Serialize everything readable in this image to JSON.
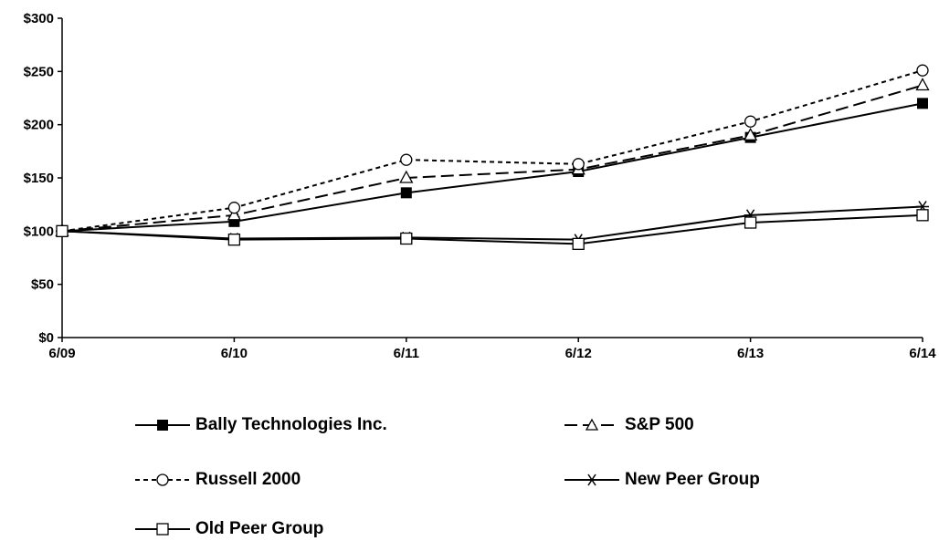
{
  "chart_data": {
    "type": "line",
    "title": "",
    "xlabel": "",
    "ylabel": "",
    "categories": [
      "6/09",
      "6/10",
      "6/11",
      "6/12",
      "6/13",
      "6/14"
    ],
    "y_ticks": [
      "$0",
      "$50",
      "$100",
      "$150",
      "$200",
      "$250",
      "$300"
    ],
    "ylim": [
      0,
      300
    ],
    "grid": false,
    "legend_position": "bottom",
    "series": [
      {
        "name": "Bally Technologies Inc.",
        "marker": "filled-square",
        "dash": "solid",
        "values": [
          100,
          109,
          136,
          156,
          188,
          220
        ]
      },
      {
        "name": "S&P 500",
        "marker": "open-triangle",
        "dash": "long-dash",
        "values": [
          100,
          115,
          150,
          158,
          190,
          237
        ]
      },
      {
        "name": "Russell 2000",
        "marker": "open-circle",
        "dash": "short-dash",
        "values": [
          100,
          122,
          167,
          163,
          203,
          251
        ]
      },
      {
        "name": "New Peer Group",
        "marker": "asterisk",
        "dash": "solid",
        "values": [
          100,
          93,
          94,
          92,
          115,
          123
        ]
      },
      {
        "name": "Old Peer Group",
        "marker": "open-square",
        "dash": "solid",
        "values": [
          100,
          92,
          93,
          88,
          108,
          115
        ]
      }
    ]
  }
}
